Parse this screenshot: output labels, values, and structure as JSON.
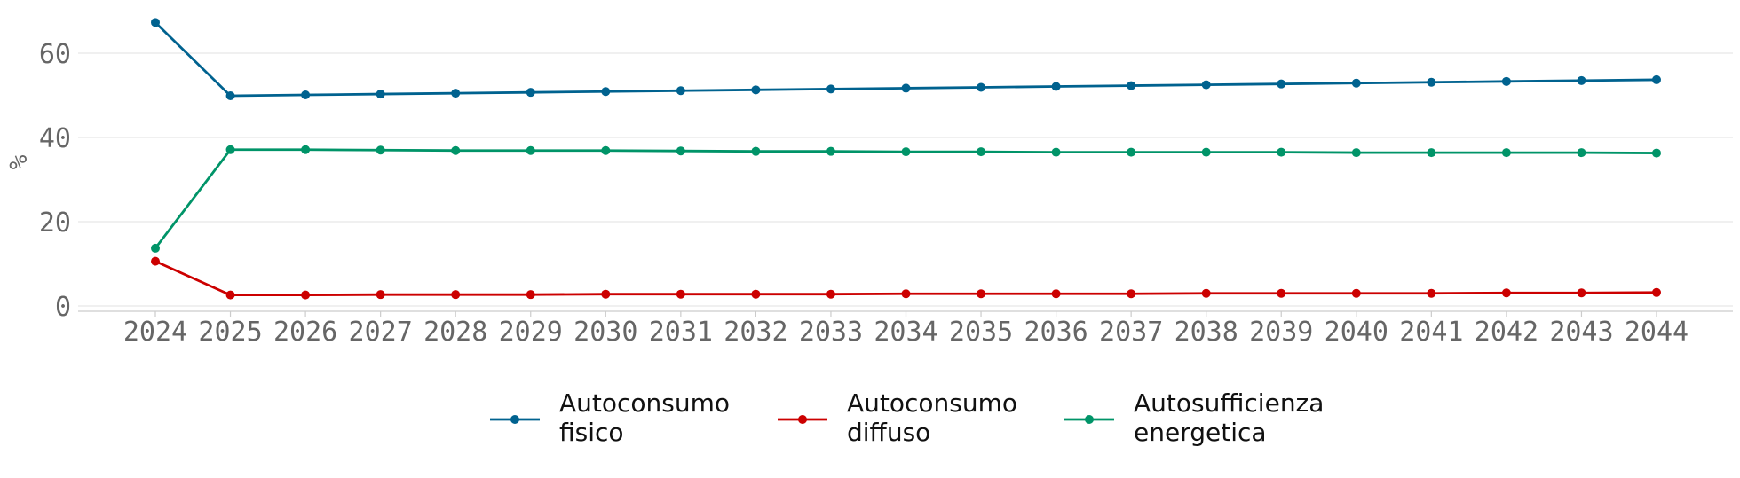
{
  "chart_data": {
    "type": "line",
    "title": "",
    "xlabel": "",
    "ylabel": "%",
    "x": [
      "2024",
      "2025",
      "2026",
      "2027",
      "2028",
      "2029",
      "2030",
      "2031",
      "2032",
      "2033",
      "2034",
      "2035",
      "2036",
      "2037",
      "2038",
      "2039",
      "2040",
      "2041",
      "2042",
      "2043",
      "2044"
    ],
    "ylim": [
      0,
      70
    ],
    "yticks": [
      0,
      20,
      40,
      60
    ],
    "grid": true,
    "legend_position": "bottom-center",
    "series": [
      {
        "name": "Autoconsumo fisico",
        "name_lines": [
          "Autoconsumo",
          "fisico"
        ],
        "color": "#00628f",
        "values": [
          67.3,
          49.9,
          50.1,
          50.3,
          50.5,
          50.7,
          50.9,
          51.1,
          51.3,
          51.5,
          51.7,
          51.9,
          52.1,
          52.3,
          52.5,
          52.7,
          52.9,
          53.1,
          53.3,
          53.5,
          53.7
        ]
      },
      {
        "name": "Autoconsumo diffuso",
        "name_lines": [
          "Autoconsumo",
          "diffuso"
        ],
        "color": "#cc0000",
        "values": [
          10.6,
          2.6,
          2.6,
          2.7,
          2.7,
          2.7,
          2.8,
          2.8,
          2.8,
          2.8,
          2.9,
          2.9,
          2.9,
          2.9,
          3.0,
          3.0,
          3.0,
          3.0,
          3.1,
          3.1,
          3.2
        ]
      },
      {
        "name": "Autosufficienza energetica",
        "name_lines": [
          "Autosufficienza",
          "energetica"
        ],
        "color": "#009468",
        "values": [
          13.7,
          37.1,
          37.1,
          37.0,
          36.9,
          36.9,
          36.9,
          36.8,
          36.7,
          36.7,
          36.6,
          36.6,
          36.5,
          36.5,
          36.5,
          36.5,
          36.4,
          36.4,
          36.4,
          36.4,
          36.3
        ]
      }
    ]
  }
}
